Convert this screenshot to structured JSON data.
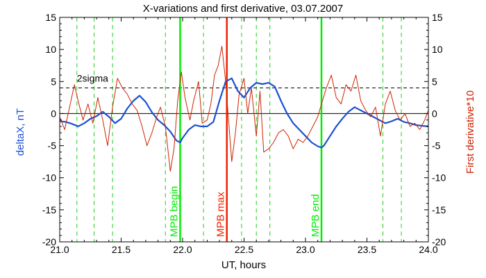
{
  "chart_data": {
    "type": "line",
    "title": "X-variations and first derivative, 03.07.2007",
    "xlabel": "UT, hours",
    "ylabel_left": "deltaX, nT",
    "ylabel_right": "First derivative*10",
    "xlim": [
      21.0,
      24.0
    ],
    "ylim": [
      -20,
      15
    ],
    "xticks": [
      21.0,
      21.5,
      22.0,
      22.5,
      23.0,
      23.5,
      24.0
    ],
    "xtick_labels": [
      "21.0",
      "21.5",
      "22.0",
      "22.5",
      "23.0",
      "23.5",
      "24.0"
    ],
    "yticks": [
      -20,
      -15,
      -10,
      -5,
      0,
      5,
      10,
      15
    ],
    "ytick_labels": [
      "-20",
      "-15",
      "-10",
      "-5",
      "0",
      "5",
      "10",
      "15"
    ],
    "grid": false,
    "colors": {
      "deltaX": "#1a50d0",
      "derivative": "#cc2200",
      "mpb_boundary": "#00ee00",
      "mpb_max": "#ee2200",
      "dashed": "#22cc22"
    },
    "reference_lines": {
      "zero": 0,
      "two_sigma": 4,
      "two_sigma_label": "2sigma"
    },
    "vertical_markers": [
      {
        "x": 21.98,
        "label": "MPB begin",
        "kind": "boundary"
      },
      {
        "x": 22.36,
        "label": "MPB max",
        "kind": "max"
      },
      {
        "x": 23.13,
        "label": "MPB end",
        "kind": "boundary"
      }
    ],
    "dashed_verticals": [
      21.14,
      21.28,
      21.43,
      21.86,
      22.17,
      22.48,
      22.6,
      22.71,
      23.63,
      23.78
    ],
    "series": [
      {
        "key": "deltaX",
        "axis": "left",
        "x": [
          21.0,
          21.05,
          21.1,
          21.15,
          21.2,
          21.25,
          21.3,
          21.35,
          21.4,
          21.45,
          21.5,
          21.55,
          21.6,
          21.65,
          21.7,
          21.75,
          21.8,
          21.85,
          21.9,
          21.95,
          21.98,
          22.0,
          22.05,
          22.1,
          22.15,
          22.2,
          22.25,
          22.3,
          22.35,
          22.4,
          22.45,
          22.5,
          22.55,
          22.6,
          22.65,
          22.7,
          22.75,
          22.8,
          22.85,
          22.9,
          22.95,
          23.0,
          23.05,
          23.1,
          23.13,
          23.15,
          23.2,
          23.25,
          23.3,
          23.35,
          23.4,
          23.45,
          23.5,
          23.55,
          23.6,
          23.65,
          23.7,
          23.75,
          23.8,
          23.85,
          23.9,
          23.95,
          24.0
        ],
        "values": [
          -1.2,
          -1.3,
          -1.6,
          -2.0,
          -1.5,
          -0.8,
          -0.4,
          0.3,
          -0.5,
          -1.5,
          -0.8,
          0.8,
          2.0,
          2.8,
          1.8,
          0.2,
          -1.0,
          -1.8,
          -2.8,
          -4.2,
          -4.5,
          -3.8,
          -2.5,
          -1.8,
          -2.0,
          -2.0,
          -1.3,
          2.0,
          5.0,
          5.5,
          3.5,
          2.5,
          4.0,
          4.8,
          4.6,
          4.8,
          4.2,
          2.0,
          0.0,
          -1.5,
          -2.5,
          -3.5,
          -4.5,
          -5.1,
          -5.3,
          -5.0,
          -3.5,
          -2.0,
          -0.8,
          0.3,
          1.0,
          0.5,
          0.0,
          -0.5,
          -1.0,
          -1.5,
          -1.2,
          -0.8,
          -1.3,
          -1.5,
          -1.8,
          -1.9,
          -2.0
        ]
      },
      {
        "key": "derivative",
        "axis": "right",
        "x": [
          21.0,
          21.04,
          21.08,
          21.12,
          21.15,
          21.19,
          21.23,
          21.27,
          21.31,
          21.35,
          21.39,
          21.43,
          21.47,
          21.51,
          21.55,
          21.59,
          21.63,
          21.67,
          21.71,
          21.75,
          21.79,
          21.82,
          21.86,
          21.9,
          21.93,
          21.96,
          21.99,
          22.02,
          22.06,
          22.09,
          22.13,
          22.16,
          22.2,
          22.23,
          22.26,
          22.29,
          22.32,
          22.35,
          22.37,
          22.4,
          22.43,
          22.46,
          22.5,
          22.53,
          22.56,
          22.6,
          22.63,
          22.66,
          22.7,
          22.74,
          22.78,
          22.82,
          22.86,
          22.9,
          22.94,
          22.98,
          23.02,
          23.06,
          23.1,
          23.13,
          23.17,
          23.21,
          23.25,
          23.29,
          23.33,
          23.37,
          23.41,
          23.45,
          23.49,
          23.53,
          23.57,
          23.61,
          23.65,
          23.69,
          23.73,
          23.77,
          23.81,
          23.85,
          23.89,
          23.93,
          23.97,
          24.0
        ],
        "values": [
          -0.5,
          -2.5,
          1.0,
          4.5,
          2.0,
          -1.0,
          1.5,
          -1.5,
          2.5,
          -1.0,
          -5.0,
          1.0,
          5.5,
          4.0,
          3.0,
          1.5,
          0.5,
          -2.0,
          -5.0,
          -3.0,
          -0.5,
          1.0,
          -2.0,
          -9.0,
          -5.5,
          2.0,
          6.5,
          2.5,
          -1.0,
          2.0,
          5.0,
          -1.5,
          -1.0,
          1.5,
          6.0,
          7.5,
          10.5,
          5.0,
          0.0,
          -7.5,
          -3.0,
          3.0,
          5.5,
          0.0,
          4.0,
          -3.5,
          3.5,
          -6.0,
          -5.5,
          -4.5,
          -3.0,
          -2.5,
          -3.5,
          -5.5,
          -4.0,
          -4.5,
          -3.5,
          -2.0,
          -0.5,
          1.5,
          4.0,
          6.0,
          2.5,
          1.5,
          4.5,
          3.5,
          6.0,
          2.0,
          0.5,
          -0.5,
          1.0,
          -3.5,
          1.5,
          3.5,
          0.5,
          -1.0,
          0.0,
          -2.0,
          -1.5,
          -2.5,
          -1.0,
          0.5
        ]
      }
    ]
  }
}
